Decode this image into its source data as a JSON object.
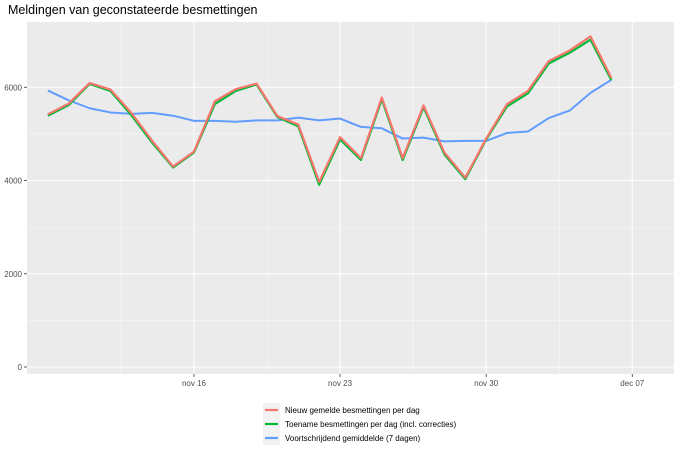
{
  "chart_data": {
    "type": "line",
    "title": "Meldingen van geconstateerde besmettingen",
    "xlabel": "",
    "ylabel": "",
    "x_tick_labels": [
      "nov 16",
      "nov 23",
      "nov 30",
      "dec 07"
    ],
    "x_tick_dates": [
      "2020-11-16",
      "2020-11-23",
      "2020-11-30",
      "2020-12-07"
    ],
    "y_ticks": [
      0,
      2000,
      4000,
      6000
    ],
    "y_tick_labels": [
      "0",
      "2000",
      "4000",
      "6000"
    ],
    "xlim": [
      "2020-11-08",
      "2020-12-09"
    ],
    "ylim": [
      -150,
      7400
    ],
    "grid": true,
    "legend_position": "bottom",
    "x": [
      "2020-11-09",
      "2020-11-10",
      "2020-11-11",
      "2020-11-12",
      "2020-11-13",
      "2020-11-14",
      "2020-11-15",
      "2020-11-16",
      "2020-11-17",
      "2020-11-18",
      "2020-11-19",
      "2020-11-20",
      "2020-11-21",
      "2020-11-22",
      "2020-11-23",
      "2020-11-24",
      "2020-11-25",
      "2020-11-26",
      "2020-11-27",
      "2020-11-28",
      "2020-11-29",
      "2020-11-30",
      "2020-12-01",
      "2020-12-02",
      "2020-12-03",
      "2020-12-04",
      "2020-12-05",
      "2020-12-06",
      "2020-12-07",
      "2020-12-08"
    ],
    "series": [
      {
        "name": "Nieuw gemelde besmettingen per dag",
        "color": "#F8766D",
        "values": [
          5420,
          5650,
          6090,
          5950,
          5450,
          4850,
          4300,
          4620,
          5700,
          5960,
          6080,
          5380,
          5200,
          3970,
          4930,
          4480,
          5780,
          4480,
          5610,
          4600,
          4060,
          4900,
          5640,
          5920,
          6560,
          6790,
          7090,
          6200,
          null,
          null
        ]
      },
      {
        "name": "Toename besmettingen per dag (incl. correcties)",
        "color": "#00BA38",
        "values": [
          5390,
          5620,
          6070,
          5920,
          5400,
          4810,
          4280,
          4600,
          5640,
          5920,
          6060,
          5360,
          5160,
          3910,
          4880,
          4440,
          5740,
          4440,
          5570,
          4560,
          4030,
          4880,
          5590,
          5870,
          6510,
          6740,
          7020,
          6150,
          null,
          null
        ]
      },
      {
        "name": "Voortschrijdend gemiddelde (7 dagen)",
        "color": "#619CFF",
        "values": [
          5930,
          5720,
          5550,
          5460,
          5430,
          5450,
          5390,
          5280,
          5280,
          5260,
          5290,
          5290,
          5350,
          5290,
          5330,
          5150,
          5120,
          4900,
          4920,
          4840,
          4850,
          4850,
          5020,
          5050,
          5340,
          5500,
          5880,
          6160,
          null,
          null
        ]
      }
    ]
  }
}
